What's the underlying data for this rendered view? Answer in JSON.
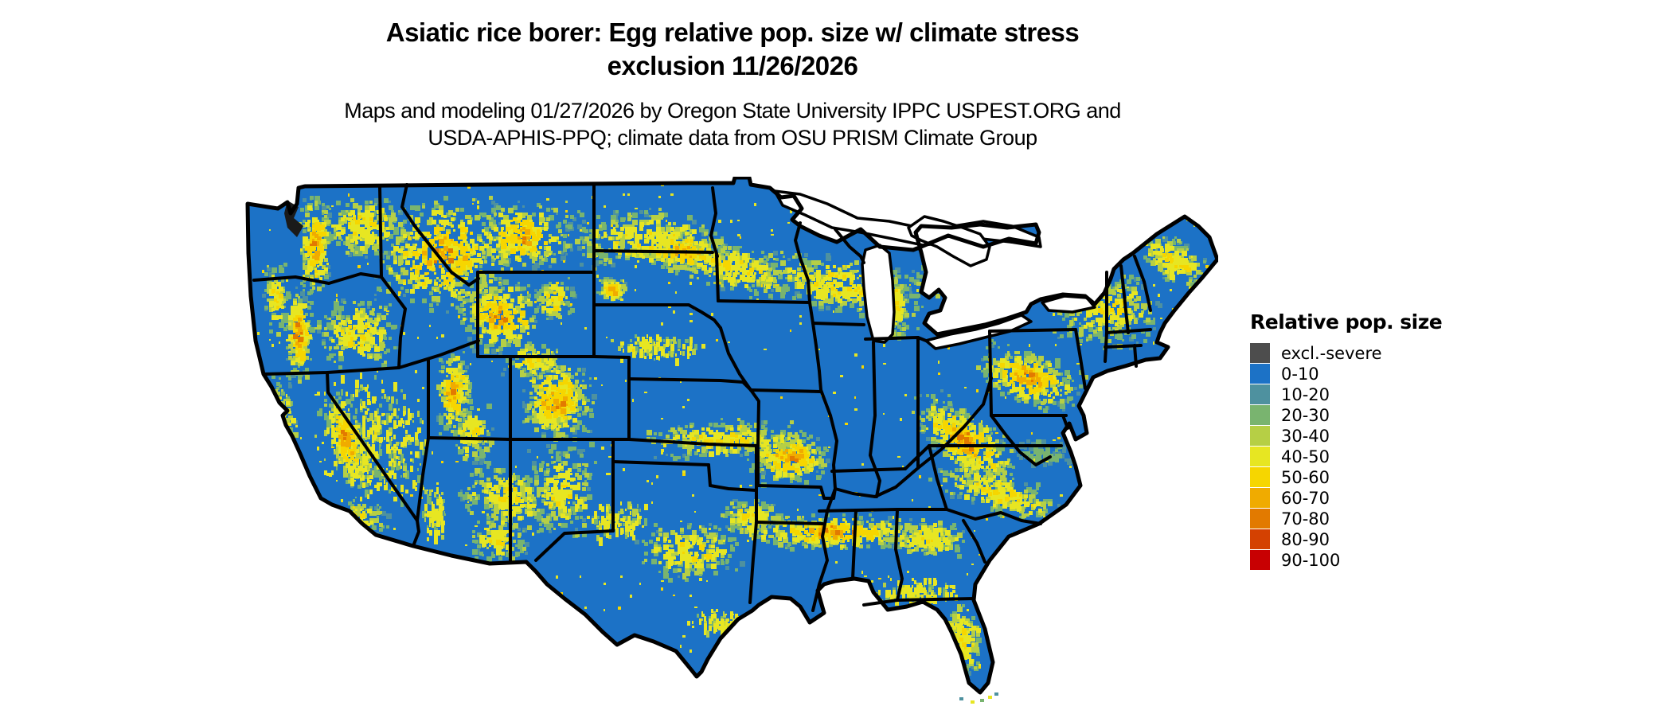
{
  "header": {
    "title_line1": "Asiatic rice borer: Egg relative pop. size w/ climate stress",
    "title_line2": "exclusion 11/26/2026",
    "subtitle_line1": "Maps and modeling 01/27/2026 by Oregon State University IPPC USPEST.ORG and",
    "subtitle_line2": "USDA-APHIS-PPQ; climate data from OSU PRISM Climate Group"
  },
  "legend": {
    "title": "Relative pop. size",
    "items": [
      {
        "label": "excl.-severe",
        "color": "#4d4d4d"
      },
      {
        "label": "0-10",
        "color": "#1c72c6"
      },
      {
        "label": "10-20",
        "color": "#4e919f"
      },
      {
        "label": "20-30",
        "color": "#79b46f"
      },
      {
        "label": "30-40",
        "color": "#b6cf45"
      },
      {
        "label": "40-50",
        "color": "#e7e622"
      },
      {
        "label": "50-60",
        "color": "#f6d600"
      },
      {
        "label": "60-70",
        "color": "#f0ab00"
      },
      {
        "label": "70-80",
        "color": "#e27a00"
      },
      {
        "label": "80-90",
        "color": "#d44101"
      },
      {
        "label": "90-100",
        "color": "#c80002"
      }
    ]
  },
  "map": {
    "land_base_label": "0-10",
    "water_color": "#ffffff",
    "boundary_color": "#000000",
    "inlet_color": "#1a1a1a"
  }
}
